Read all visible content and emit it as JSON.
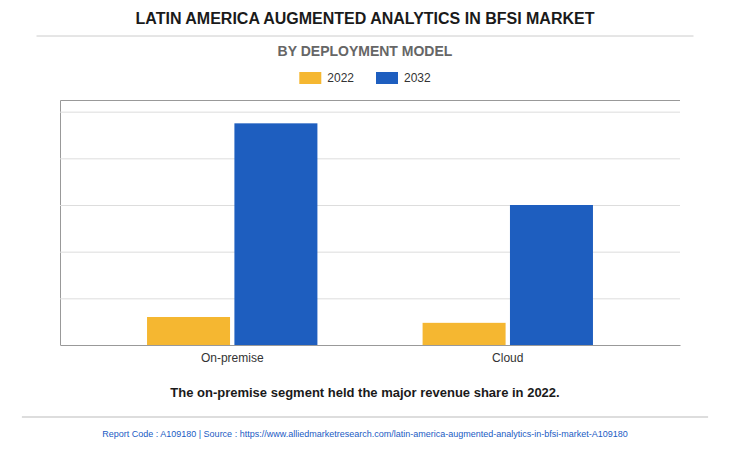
{
  "chart_data": {
    "type": "bar",
    "title": "LATIN AMERICA AUGMENTED ANALYTICS IN BFSI MARKET",
    "subtitle": "BY DEPLOYMENT MODEL",
    "categories": [
      "On-premise",
      "Cloud"
    ],
    "series": [
      {
        "name": "2022",
        "color": "#F5B731",
        "values": [
          0.12,
          0.095
        ]
      },
      {
        "name": "2032",
        "color": "#1E5EBF",
        "values": [
          0.95,
          0.6
        ]
      }
    ],
    "ylim": [
      0,
      1.05
    ],
    "yticks": [
      0,
      0.2,
      0.4,
      0.6,
      0.8,
      1.0
    ],
    "grid": true,
    "legend": "top",
    "tick_labels": "x",
    "annotation": "The on-premise segment held the major revenue share in 2022.",
    "footer": "Report Code : A109180  |  Source : https://www.alliedmarketresearch.com/latin-america-augmented-analytics-in-bfsi-market-A109180"
  }
}
